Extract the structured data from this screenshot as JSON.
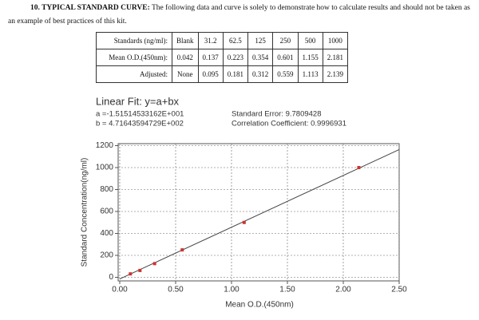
{
  "header": {
    "title": "10. TYPICAL STANDARD CURVE:",
    "text": "The following data and curve is solely to demonstrate how to calculate results and should not be taken as an example of best practices of this kit."
  },
  "table": {
    "rows": [
      [
        "Standards (ng/ml):",
        "Blank",
        "31.2",
        "62.5",
        "125",
        "250",
        "500",
        "1000"
      ],
      [
        "Mean O.D.(450nm):",
        "0.042",
        "0.137",
        "0.223",
        "0.354",
        "0.601",
        "1.155",
        "2.181"
      ],
      [
        "Adjusted:",
        "None",
        "0.095",
        "0.181",
        "0.312",
        "0.559",
        "1.113",
        "2.139"
      ]
    ]
  },
  "chart": {
    "type": "scatter",
    "fit_title": "Linear Fit: y=a+bx",
    "fit_a": "a =-1.51514533162E+001",
    "fit_b": "b = 4.71643594729E+002",
    "std_error": "Standard Error: 9.7809428",
    "correlation": "Correlation Coefficient: 0.9996931",
    "x_label": "Mean O.D.(450nm)",
    "y_label": "Standard Concentration(ng/ml)",
    "x": [
      0.095,
      0.181,
      0.312,
      0.559,
      1.113,
      2.139
    ],
    "values": [
      31.2,
      62.5,
      125,
      250,
      500,
      1000
    ],
    "color": "#cc3333",
    "fit_line": {
      "x": [
        0,
        2.5
      ],
      "y": [
        -15,
        1164
      ],
      "color": "#444444"
    },
    "xlim": [
      0,
      2.5
    ],
    "ylim": [
      0,
      1200
    ],
    "xticks": [
      {
        "value": 0,
        "label": "0.00"
      },
      {
        "value": 0.5,
        "label": "0.50"
      },
      {
        "value": 1,
        "label": "1.00"
      },
      {
        "value": 1.5,
        "label": "1.50"
      },
      {
        "value": 2,
        "label": "2.00"
      },
      {
        "value": 2.5,
        "label": "2.50"
      }
    ],
    "yticks": [
      0,
      200,
      400,
      600,
      800,
      1000,
      1200
    ],
    "grid": true
  }
}
